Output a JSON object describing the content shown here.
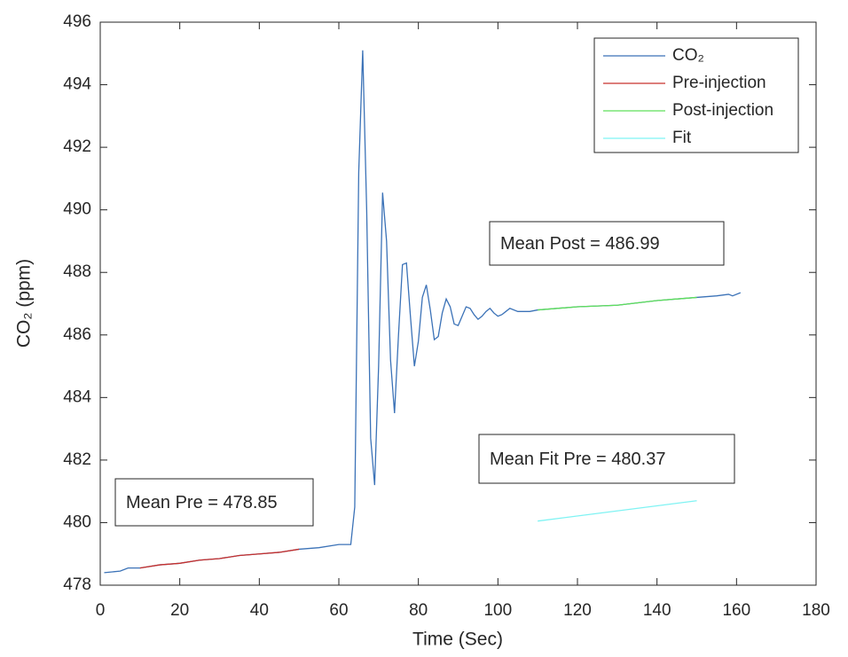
{
  "chart_data": {
    "type": "line",
    "xlabel": "Time (Sec)",
    "ylabel": "CO₂ (ppm)",
    "xlim": [
      0,
      180
    ],
    "xticks": [
      0,
      20,
      40,
      60,
      80,
      100,
      120,
      140,
      160,
      180
    ],
    "ylim": [
      478,
      496
    ],
    "yticks": [
      478,
      480,
      482,
      484,
      486,
      488,
      490,
      492,
      494,
      496
    ],
    "legend": "upper right",
    "series": [
      {
        "name": "CO₂",
        "color": "#3b72b7",
        "x": [
          1,
          5,
          7,
          10,
          15,
          20,
          25,
          30,
          35,
          40,
          45,
          50,
          55,
          60,
          63,
          64,
          65,
          66,
          67,
          68,
          69,
          70,
          71,
          72,
          73,
          74,
          75,
          76,
          77,
          78,
          79,
          80,
          81,
          82,
          83,
          84,
          85,
          86,
          87,
          88,
          89,
          90,
          91,
          92,
          93,
          94,
          95,
          96,
          97,
          98,
          99,
          100,
          101,
          102,
          103,
          105,
          108,
          110,
          120,
          130,
          140,
          150,
          155,
          158,
          159,
          161
        ],
        "values": [
          478.4,
          478.45,
          478.55,
          478.55,
          478.65,
          478.7,
          478.8,
          478.85,
          478.95,
          479.0,
          479.05,
          479.15,
          479.2,
          479.3,
          479.3,
          480.5,
          491.2,
          495.1,
          490.0,
          482.7,
          481.2,
          485.0,
          490.55,
          489.0,
          485.2,
          483.5,
          486.0,
          488.25,
          488.3,
          486.6,
          485.0,
          485.8,
          487.2,
          487.6,
          486.8,
          485.85,
          485.95,
          486.7,
          487.15,
          486.9,
          486.35,
          486.3,
          486.6,
          486.9,
          486.85,
          486.65,
          486.5,
          486.6,
          486.75,
          486.85,
          486.7,
          486.6,
          486.65,
          486.75,
          486.85,
          486.75,
          486.75,
          486.8,
          486.9,
          486.95,
          487.1,
          487.2,
          487.25,
          487.3,
          487.25,
          487.35
        ]
      },
      {
        "name": "Pre-injection",
        "color": "#c8302c",
        "x": [
          10,
          15,
          20,
          25,
          30,
          35,
          40,
          45,
          50
        ],
        "values": [
          478.55,
          478.65,
          478.7,
          478.8,
          478.85,
          478.95,
          479.0,
          479.05,
          479.15
        ]
      },
      {
        "name": "Post-injection",
        "color": "#5fe05a",
        "x": [
          110,
          120,
          130,
          140,
          150
        ],
        "values": [
          486.8,
          486.9,
          486.95,
          487.1,
          487.2
        ]
      },
      {
        "name": "Fit",
        "color": "#7ff3f3",
        "x": [
          110,
          150
        ],
        "values": [
          480.05,
          480.7
        ]
      }
    ],
    "annotations": [
      "Mean Post = 486.99",
      "Mean Fit Pre = 480.37",
      "Mean Pre = 478.85"
    ]
  }
}
